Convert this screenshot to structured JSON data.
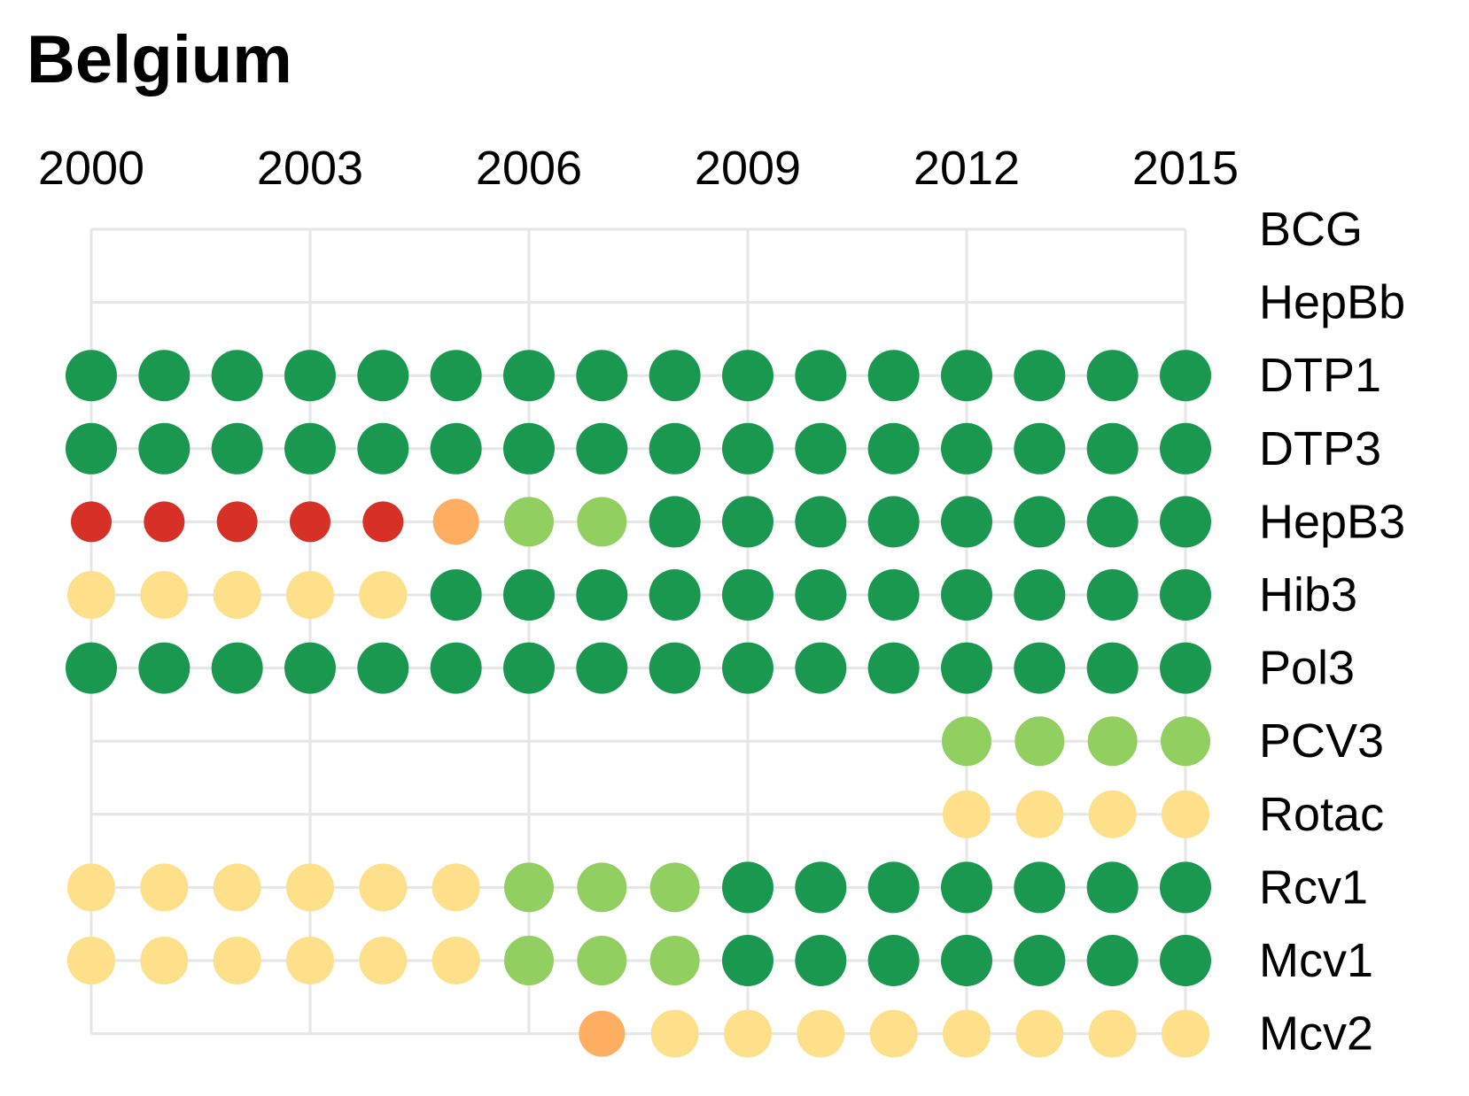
{
  "chart_data": {
    "type": "dot-matrix",
    "title": "Belgium",
    "x_ticks": [
      "2000",
      "2003",
      "2006",
      "2009",
      "2012",
      "2015"
    ],
    "years": [
      2000,
      2001,
      2002,
      2003,
      2004,
      2005,
      2006,
      2007,
      2008,
      2009,
      2010,
      2011,
      2012,
      2013,
      2014,
      2015
    ],
    "xlim": [
      2000,
      2015
    ],
    "grid": true,
    "colors": {
      "red": "#d73027",
      "orange": "#fdae61",
      "yellow": "#fee08b",
      "lightgreen": "#91cf60",
      "darkgreen": "#1a9850",
      "grid": "#e6e6e6"
    },
    "series": [
      {
        "name": "BCG",
        "values": [
          null,
          null,
          null,
          null,
          null,
          null,
          null,
          null,
          null,
          null,
          null,
          null,
          null,
          null,
          null,
          null
        ]
      },
      {
        "name": "HepBb",
        "values": [
          null,
          null,
          null,
          null,
          null,
          null,
          null,
          null,
          null,
          null,
          null,
          null,
          null,
          null,
          null,
          null
        ]
      },
      {
        "name": "DTP1",
        "values": [
          "darkgreen",
          "darkgreen",
          "darkgreen",
          "darkgreen",
          "darkgreen",
          "darkgreen",
          "darkgreen",
          "darkgreen",
          "darkgreen",
          "darkgreen",
          "darkgreen",
          "darkgreen",
          "darkgreen",
          "darkgreen",
          "darkgreen",
          "darkgreen"
        ]
      },
      {
        "name": "DTP3",
        "values": [
          "darkgreen",
          "darkgreen",
          "darkgreen",
          "darkgreen",
          "darkgreen",
          "darkgreen",
          "darkgreen",
          "darkgreen",
          "darkgreen",
          "darkgreen",
          "darkgreen",
          "darkgreen",
          "darkgreen",
          "darkgreen",
          "darkgreen",
          "darkgreen"
        ]
      },
      {
        "name": "HepB3",
        "values": [
          "red",
          "red",
          "red",
          "red",
          "red",
          "orange",
          "lightgreen",
          "lightgreen",
          "darkgreen",
          "darkgreen",
          "darkgreen",
          "darkgreen",
          "darkgreen",
          "darkgreen",
          "darkgreen",
          "darkgreen"
        ]
      },
      {
        "name": "Hib3",
        "values": [
          "yellow",
          "yellow",
          "yellow",
          "yellow",
          "yellow",
          "darkgreen",
          "darkgreen",
          "darkgreen",
          "darkgreen",
          "darkgreen",
          "darkgreen",
          "darkgreen",
          "darkgreen",
          "darkgreen",
          "darkgreen",
          "darkgreen"
        ]
      },
      {
        "name": "Pol3",
        "values": [
          "darkgreen",
          "darkgreen",
          "darkgreen",
          "darkgreen",
          "darkgreen",
          "darkgreen",
          "darkgreen",
          "darkgreen",
          "darkgreen",
          "darkgreen",
          "darkgreen",
          "darkgreen",
          "darkgreen",
          "darkgreen",
          "darkgreen",
          "darkgreen"
        ]
      },
      {
        "name": "PCV3",
        "values": [
          null,
          null,
          null,
          null,
          null,
          null,
          null,
          null,
          null,
          null,
          null,
          null,
          "lightgreen",
          "lightgreen",
          "lightgreen",
          "lightgreen"
        ]
      },
      {
        "name": "Rotac",
        "values": [
          null,
          null,
          null,
          null,
          null,
          null,
          null,
          null,
          null,
          null,
          null,
          null,
          "yellow",
          "yellow",
          "yellow",
          "yellow"
        ]
      },
      {
        "name": "Rcv1",
        "values": [
          "yellow",
          "yellow",
          "yellow",
          "yellow",
          "yellow",
          "yellow",
          "lightgreen",
          "lightgreen",
          "lightgreen",
          "darkgreen",
          "darkgreen",
          "darkgreen",
          "darkgreen",
          "darkgreen",
          "darkgreen",
          "darkgreen"
        ]
      },
      {
        "name": "Mcv1",
        "values": [
          "yellow",
          "yellow",
          "yellow",
          "yellow",
          "yellow",
          "yellow",
          "lightgreen",
          "lightgreen",
          "lightgreen",
          "darkgreen",
          "darkgreen",
          "darkgreen",
          "darkgreen",
          "darkgreen",
          "darkgreen",
          "darkgreen"
        ]
      },
      {
        "name": "Mcv2",
        "values": [
          null,
          null,
          null,
          null,
          null,
          null,
          null,
          "orange",
          "yellow",
          "yellow",
          "yellow",
          "yellow",
          "yellow",
          "yellow",
          "yellow",
          "yellow"
        ]
      }
    ]
  }
}
